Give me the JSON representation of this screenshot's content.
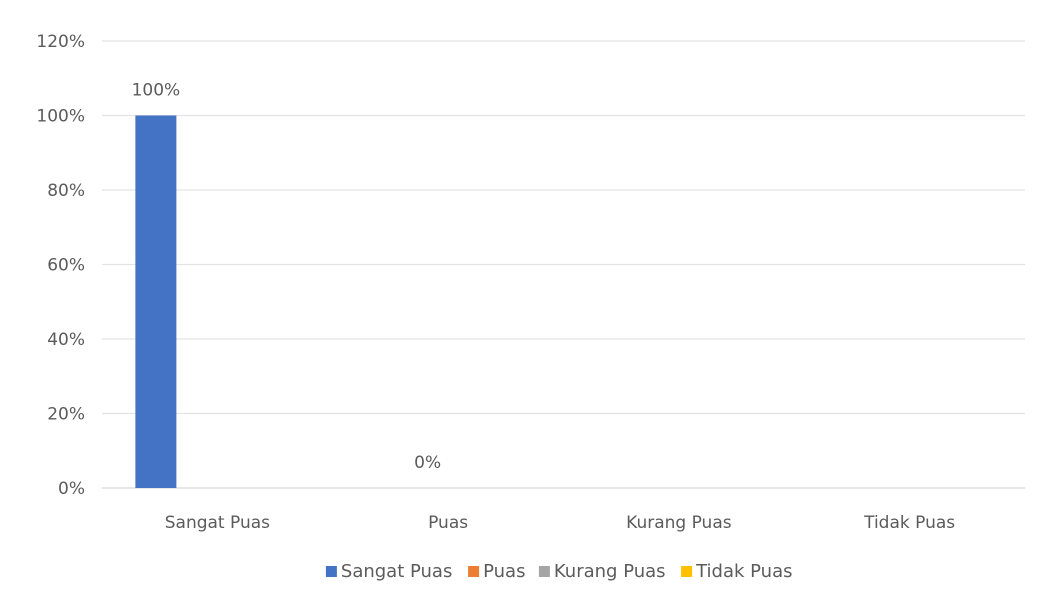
{
  "chart_data": {
    "type": "bar",
    "title": "",
    "xlabel": "",
    "ylabel": "",
    "categories": [
      "Sangat Puas",
      "Puas",
      "Kurang Puas",
      "Tidak Puas"
    ],
    "series": [
      {
        "name": "Sangat Puas",
        "values": [
          100,
          null,
          null,
          null
        ],
        "color": "#4472C4"
      },
      {
        "name": "Puas",
        "values": [
          null,
          0,
          null,
          null
        ],
        "color": "#ED7D31"
      },
      {
        "name": "Kurang Puas",
        "values": [
          null,
          null,
          null,
          null
        ],
        "color": "#A5A5A5"
      },
      {
        "name": "Tidak Puas",
        "values": [
          null,
          null,
          null,
          null
        ],
        "color": "#FFC000"
      }
    ],
    "data_labels": [
      {
        "category": "Sangat Puas",
        "series": "Sangat Puas",
        "text": "100%"
      },
      {
        "category": "Puas",
        "series": "Puas",
        "text": "0%"
      }
    ],
    "ylim": [
      0,
      120
    ],
    "yticks": [
      0,
      20,
      40,
      60,
      80,
      100,
      120
    ],
    "ytick_labels": [
      "0%",
      "20%",
      "40%",
      "60%",
      "80%",
      "100%",
      "120%"
    ],
    "grid": true,
    "legend": {
      "position": "bottom",
      "entries": [
        "Sangat Puas",
        "Puas",
        "Kurang Puas",
        "Tidak Puas"
      ]
    }
  }
}
